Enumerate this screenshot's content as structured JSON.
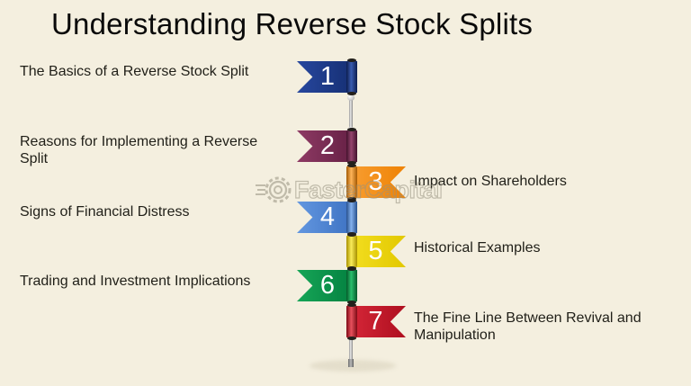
{
  "title": "Understanding Reverse Stock Splits",
  "watermark": {
    "text": "FasterCapital"
  },
  "colors": {
    "background": "#f4efdf",
    "title_text": "#0a0a0a",
    "label_text": "#201f18",
    "number_text": "#ffffff",
    "pole": "#9a9a9a",
    "shadow": "#e4decb"
  },
  "flags": [
    {
      "number": "1",
      "label": "The Basics of a Reverse Stock Split",
      "side": "left",
      "body_light": "#27479e",
      "body_dark": "#142d70",
      "roll_light": "#3a5cb0",
      "roll_dark": "#0c1d4e"
    },
    {
      "number": "2",
      "label": "Reasons for Implementing a Reverse Split",
      "side": "left",
      "body_light": "#8e3a64",
      "body_dark": "#621e42",
      "roll_light": "#96446e",
      "roll_dark": "#42122c"
    },
    {
      "number": "3",
      "label": "Impact on Shareholders",
      "side": "right",
      "body_light": "#f9a035",
      "body_dark": "#ee8204",
      "roll_light": "#ffb559",
      "roll_dark": "#a35903"
    },
    {
      "number": "4",
      "label": "Signs of Financial Distress",
      "side": "left",
      "body_light": "#6397e0",
      "body_dark": "#3a6fc0",
      "roll_light": "#85b2ef",
      "roll_dark": "#27508c"
    },
    {
      "number": "5",
      "label": "Historical Examples",
      "side": "right",
      "body_light": "#f4e023",
      "body_dark": "#e2c800",
      "roll_light": "#f9ec5a",
      "roll_dark": "#a89000"
    },
    {
      "number": "6",
      "label": "Trading and Investment Implications",
      "side": "left",
      "body_light": "#16a557",
      "body_dark": "#027e3e",
      "roll_light": "#2abf6d",
      "roll_dark": "#055a2a"
    },
    {
      "number": "7",
      "label": "The Fine Line Between Revival and Manipulation",
      "side": "right",
      "body_light": "#d8283a",
      "body_dark": "#ae0f1f",
      "roll_light": "#e7515d",
      "roll_dark": "#7d0a15"
    }
  ]
}
